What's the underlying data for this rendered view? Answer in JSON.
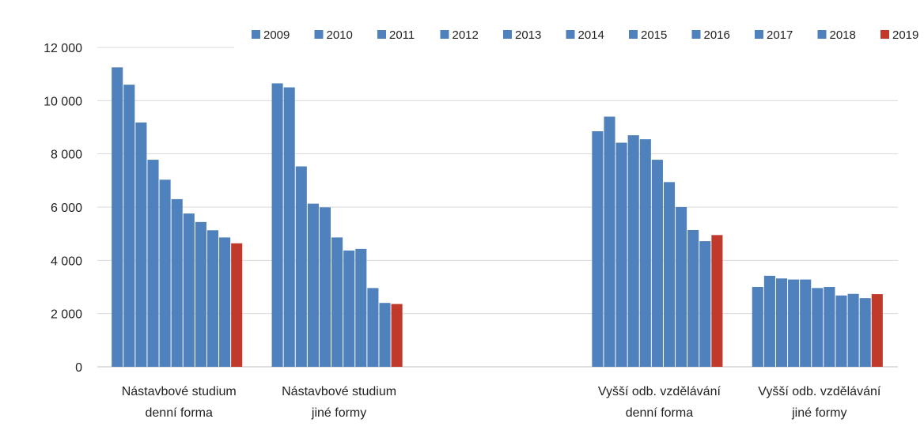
{
  "chart_data": {
    "type": "bar",
    "categories": [
      [
        "Nástavbové studium",
        "denní forma"
      ],
      [
        "Nástavbové studium",
        "jiné formy"
      ],
      [
        "",
        ""
      ],
      [
        "Vyšší odb. vzdělávání",
        "denní forma"
      ],
      [
        "Vyšší odb. vzdělávání",
        "jiné formy"
      ]
    ],
    "series": [
      {
        "name": "2009",
        "values": [
          11250,
          10650,
          null,
          8850,
          3000
        ]
      },
      {
        "name": "2010",
        "values": [
          10600,
          10500,
          null,
          9400,
          3420
        ]
      },
      {
        "name": "2011",
        "values": [
          9180,
          7530,
          null,
          8420,
          3320
        ]
      },
      {
        "name": "2012",
        "values": [
          7780,
          6130,
          null,
          8700,
          3280
        ]
      },
      {
        "name": "2013",
        "values": [
          7030,
          5990,
          null,
          8550,
          3280
        ]
      },
      {
        "name": "2014",
        "values": [
          6300,
          4860,
          null,
          7780,
          2960
        ]
      },
      {
        "name": "2015",
        "values": [
          5760,
          4370,
          null,
          6940,
          3000
        ]
      },
      {
        "name": "2016",
        "values": [
          5440,
          4430,
          null,
          6000,
          2680
        ]
      },
      {
        "name": "2017",
        "values": [
          5130,
          2960,
          null,
          5140,
          2740
        ]
      },
      {
        "name": "2018",
        "values": [
          4860,
          2400,
          null,
          4720,
          2580
        ]
      },
      {
        "name": "2019",
        "values": [
          4640,
          2360,
          null,
          4950,
          2730
        ]
      }
    ],
    "y_ticks": [
      "0",
      "2 000",
      "4 000",
      "6 000",
      "8 000",
      "10 000",
      "12 000"
    ],
    "ylim": [
      0,
      12000
    ],
    "grid": true,
    "legend_position": "top",
    "colors": {
      "default": "#4F81BD",
      "highlight": "#C0392B"
    },
    "highlight_series": "2019"
  }
}
